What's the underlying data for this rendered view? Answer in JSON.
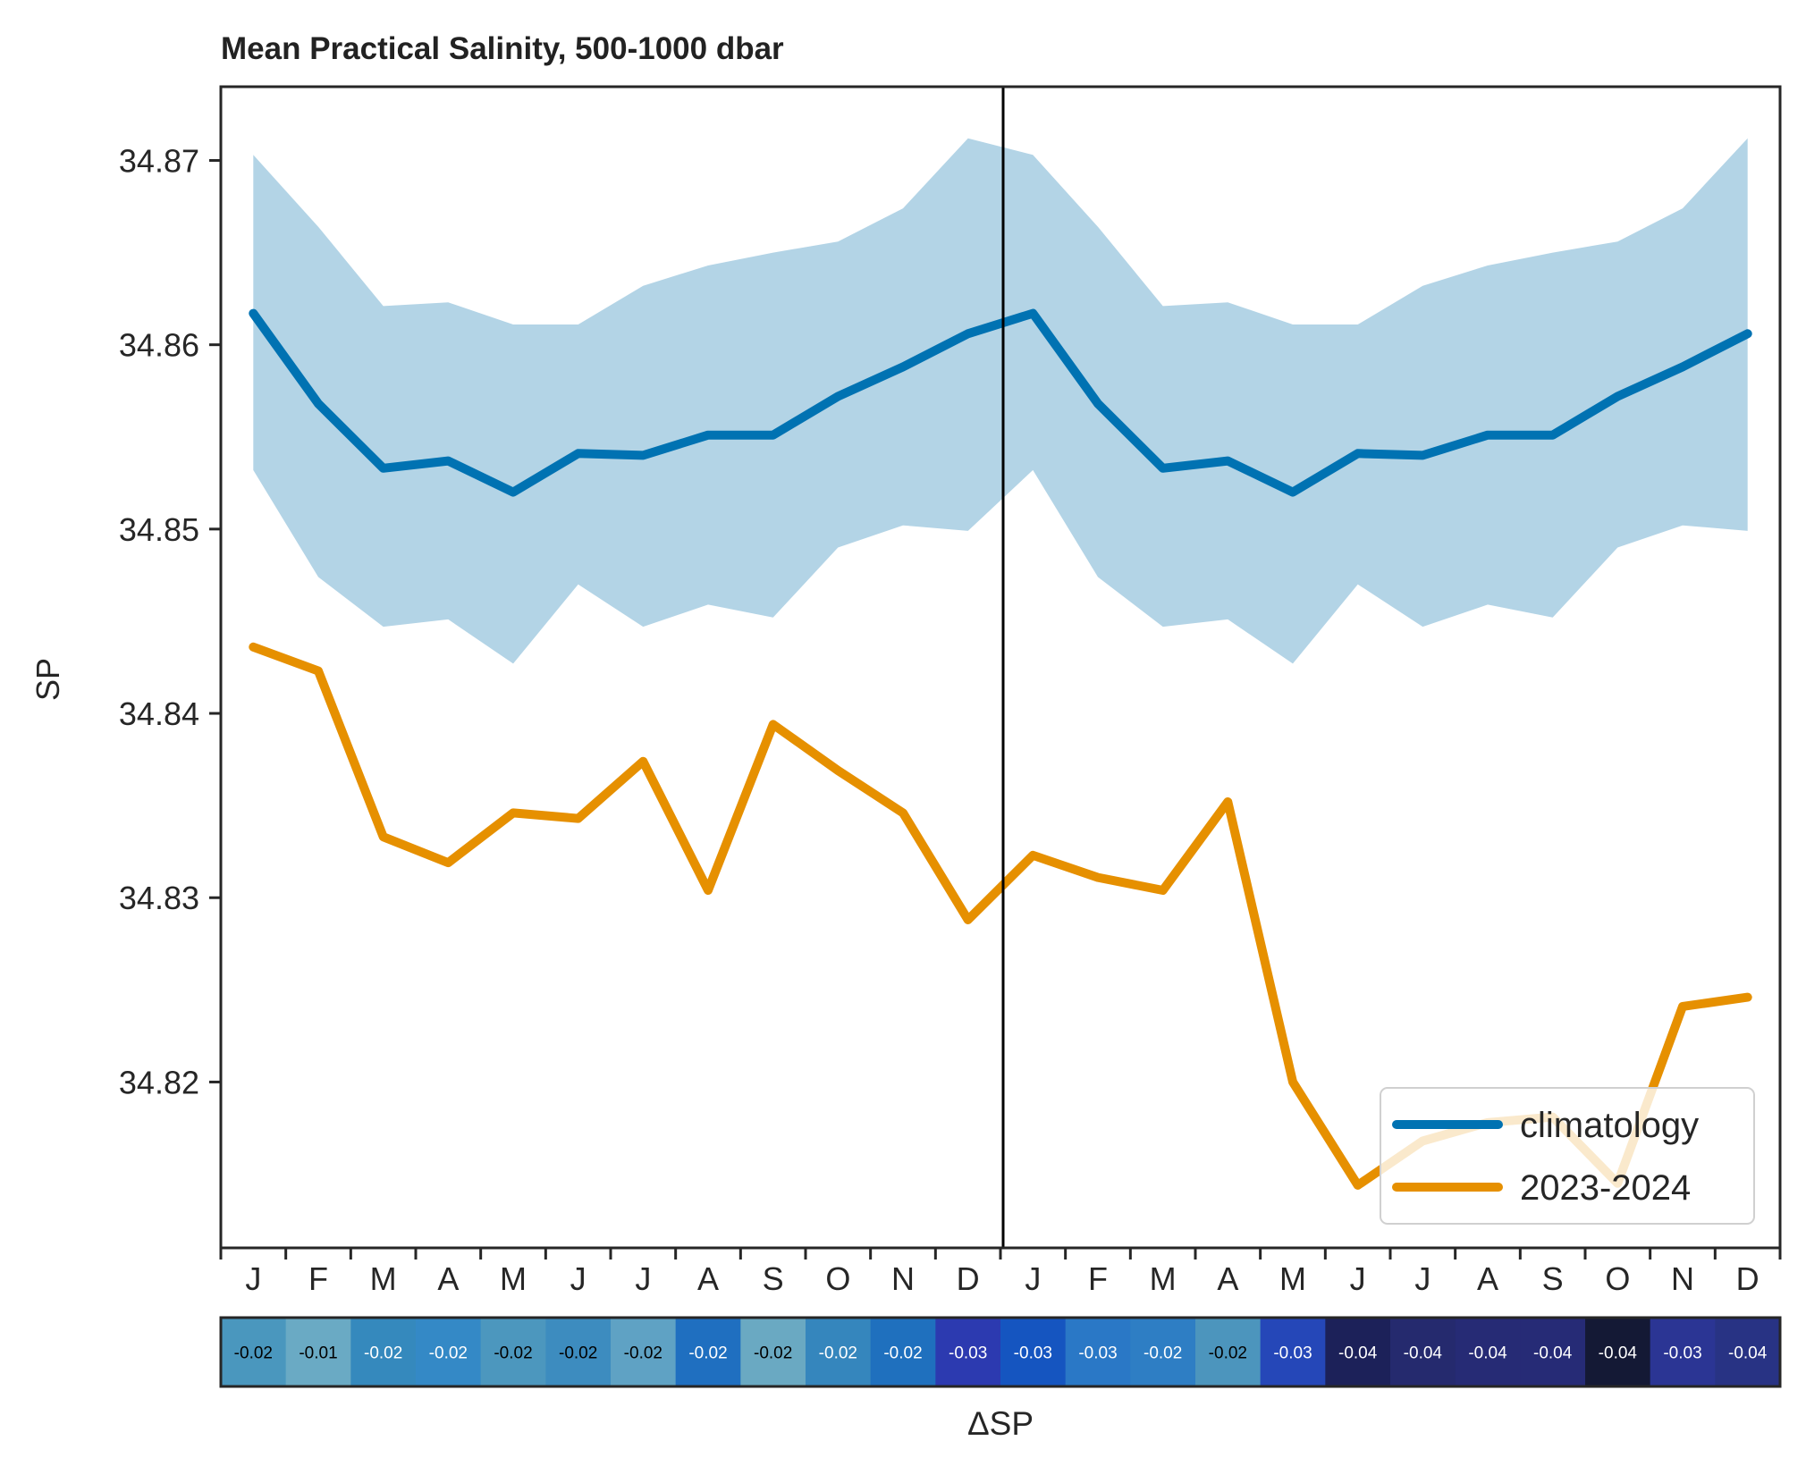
{
  "chart_data": {
    "type": "line",
    "title": "Mean Practical Salinity, 500-1000 dbar",
    "ylabel": "SP",
    "xlabel": "",
    "ylim": [
      34.811,
      34.874
    ],
    "yticks": [
      34.82,
      34.83,
      34.84,
      34.85,
      34.86,
      34.87
    ],
    "ytick_labels": [
      "34.82",
      "34.83",
      "34.84",
      "34.85",
      "34.86",
      "34.87"
    ],
    "categories": [
      "J",
      "F",
      "M",
      "A",
      "M",
      "J",
      "J",
      "A",
      "S",
      "O",
      "N",
      "D",
      "J",
      "F",
      "M",
      "A",
      "M",
      "J",
      "J",
      "A",
      "S",
      "O",
      "N",
      "D"
    ],
    "year_divider_after_index": 11,
    "grid": false,
    "legend_position": "bottom-right",
    "series": [
      {
        "name": "climatology",
        "color": "#0072b2",
        "values": [
          34.8617,
          34.8568,
          34.8533,
          34.8537,
          34.852,
          34.8541,
          34.854,
          34.8551,
          34.8551,
          34.8572,
          34.8588,
          34.8606,
          34.8617,
          34.8568,
          34.8533,
          34.8537,
          34.852,
          34.8541,
          34.854,
          34.8551,
          34.8551,
          34.8572,
          34.8588,
          34.8606
        ],
        "band_color": "#b3d4e6",
        "band_upper": [
          34.8703,
          34.8664,
          34.8621,
          34.8623,
          34.8611,
          34.8611,
          34.8632,
          34.8643,
          34.865,
          34.8656,
          34.8674,
          34.8712,
          34.8703,
          34.8664,
          34.8621,
          34.8623,
          34.8611,
          34.8611,
          34.8632,
          34.8643,
          34.865,
          34.8656,
          34.8674,
          34.8712
        ],
        "band_lower": [
          34.8532,
          34.8474,
          34.8447,
          34.8451,
          34.8427,
          34.847,
          34.8447,
          34.8459,
          34.8452,
          34.849,
          34.8502,
          34.8499,
          34.8532,
          34.8474,
          34.8447,
          34.8451,
          34.8427,
          34.847,
          34.8447,
          34.8459,
          34.8452,
          34.849,
          34.8502,
          34.8499
        ]
      },
      {
        "name": "2023-2024",
        "color": "#e69000",
        "values": [
          34.8436,
          34.8423,
          34.8333,
          34.8319,
          34.8346,
          34.8343,
          34.8374,
          34.8304,
          34.8394,
          34.8369,
          34.8346,
          34.8288,
          34.8323,
          34.8311,
          34.8304,
          34.8352,
          34.82,
          34.8144,
          34.8168,
          34.8178,
          34.8181,
          34.8145,
          34.8241,
          34.8246
        ]
      }
    ],
    "delta_strip": {
      "label": "ΔSP",
      "values": [
        "-0.02",
        "-0.01",
        "-0.02",
        "-0.02",
        "-0.02",
        "-0.02",
        "-0.02",
        "-0.02",
        "-0.02",
        "-0.02",
        "-0.02",
        "-0.03",
        "-0.03",
        "-0.03",
        "-0.02",
        "-0.02",
        "-0.03",
        "-0.04",
        "-0.04",
        "-0.04",
        "-0.04",
        "-0.04",
        "-0.03",
        "-0.04"
      ],
      "colors": [
        "#4a97be",
        "#6aaac4",
        "#3589bd",
        "#3489c6",
        "#4c97be",
        "#3d8cbf",
        "#5fa2c4",
        "#1f6fc0",
        "#6aa9c2",
        "#3586bd",
        "#1f70be",
        "#2c3ab0",
        "#1555c0",
        "#2a78c6",
        "#2e7ec4",
        "#4c95bd",
        "#2547b8",
        "#1c2159",
        "#252a6e",
        "#262b75",
        "#262b76",
        "#141935",
        "#2b3594",
        "#283384"
      ]
    }
  }
}
